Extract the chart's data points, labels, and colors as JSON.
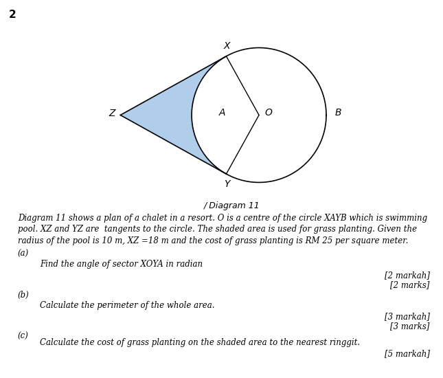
{
  "title_number": "2",
  "diagram_label": "/ Diagram 11",
  "shaded_color": "#a8c8e8",
  "shaded_alpha": 0.9,
  "background_color": "#ffffff",
  "paragraph_lines": [
    "Diagram 11 shows a plan of a chalet in a resort. O is a centre of the circle XAYB which is swimming",
    "pool. XZ and YZ are  tangents to the circle. The shaded area is used for grass planting. Given the",
    "radius of the pool is 10 m, XZ =18 m and the cost of grass planting is RM 25 per square meter."
  ],
  "part_a_label": "(a)",
  "part_a_text": "Find the angle of sector XOYA in radian",
  "part_a_marks": [
    "[2 markah]",
    "[2 marks]"
  ],
  "part_b_label": "(b)",
  "part_b_text": "Calculate the perimeter of the whole area.",
  "part_b_marks": [
    "[3 markah]",
    "[3 marks]"
  ],
  "part_c_label": "(c)",
  "part_c_text": "Calculate the cost of grass planting on the shaded area to the nearest ringgit.",
  "part_c_marks": [
    "[5 markah]"
  ],
  "r_actual": 10.0,
  "XZ_actual": 18.0
}
